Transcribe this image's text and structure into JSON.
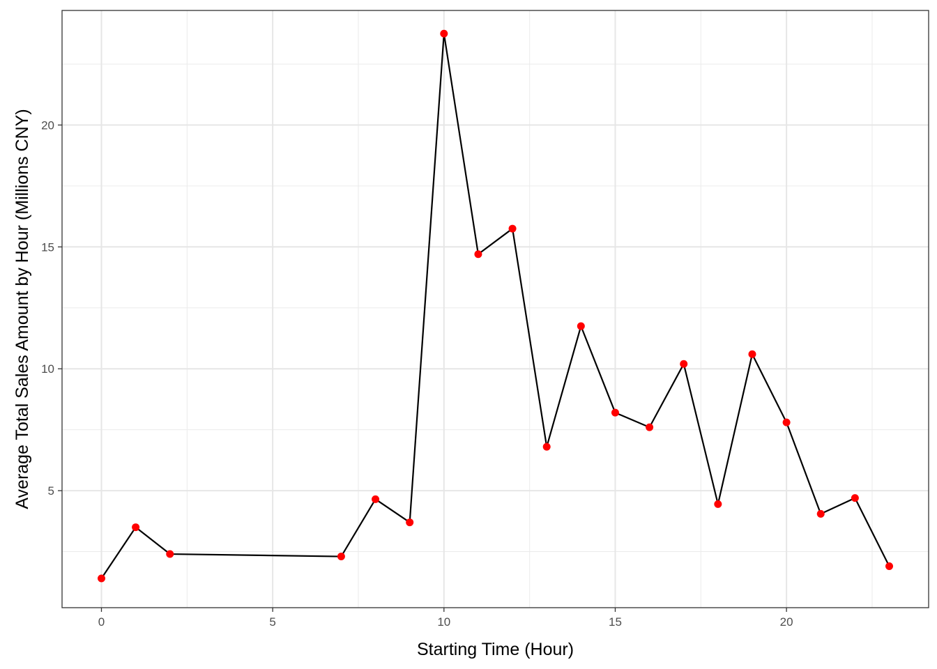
{
  "chart_data": {
    "type": "line",
    "title": "",
    "xlabel": "Starting Time (Hour)",
    "ylabel": "Average Total Sales Amount by Hour (Millions CNY)",
    "xlim": [
      -1.15,
      24.15
    ],
    "ylim": [
      0.2,
      24.7
    ],
    "x_ticks": [
      0,
      5,
      10,
      15,
      20
    ],
    "y_ticks": [
      5,
      10,
      15,
      20
    ],
    "x_minor": [
      2.5,
      7.5,
      12.5,
      17.5,
      22.5
    ],
    "y_minor": [
      2.5,
      7.5,
      12.5,
      17.5,
      22.5
    ],
    "grid": true,
    "series": [
      {
        "x": [
          0,
          1,
          2,
          7,
          8,
          9,
          10,
          11,
          12,
          13,
          14,
          15,
          16,
          17,
          18,
          19,
          20,
          21,
          22,
          23
        ],
        "y": [
          1.4,
          3.5,
          2.4,
          2.3,
          4.65,
          3.7,
          23.75,
          14.7,
          15.75,
          6.8,
          11.75,
          8.2,
          7.6,
          10.2,
          4.45,
          10.6,
          7.8,
          4.05,
          4.7,
          1.9
        ],
        "line_color": "#000000",
        "point_color": "#ff0000"
      }
    ]
  }
}
